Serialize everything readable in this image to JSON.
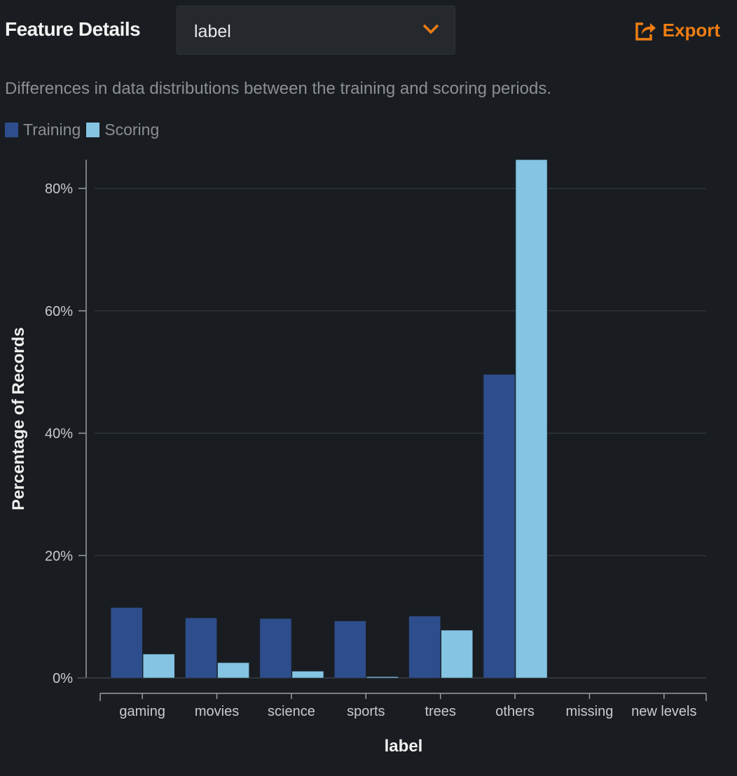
{
  "header": {
    "title": "Feature Details",
    "feature_select": "label",
    "export_label": "Export"
  },
  "description": "Differences in data distributions between the training and scoring periods.",
  "colors": {
    "training": "#2e4d8c",
    "scoring": "#85c4e3",
    "accent": "#f07d12"
  },
  "chart_data": {
    "type": "bar",
    "xlabel": "label",
    "ylabel": "Percentage of Records",
    "ylim": [
      0,
      84.7
    ],
    "yticks": [
      0,
      20,
      40,
      60,
      80
    ],
    "ytick_labels": [
      "0%",
      "20%",
      "40%",
      "60%",
      "80%"
    ],
    "grid": true,
    "legend": "top-left",
    "categories": [
      "gaming",
      "movies",
      "science",
      "sports",
      "trees",
      "others",
      "missing",
      "new levels"
    ],
    "series": [
      {
        "name": "Training",
        "values": [
          11.5,
          9.8,
          9.7,
          9.3,
          10.1,
          49.6,
          0,
          0
        ]
      },
      {
        "name": "Scoring",
        "values": [
          3.9,
          2.5,
          1.1,
          0.2,
          7.8,
          84.7,
          0,
          0
        ]
      }
    ]
  }
}
